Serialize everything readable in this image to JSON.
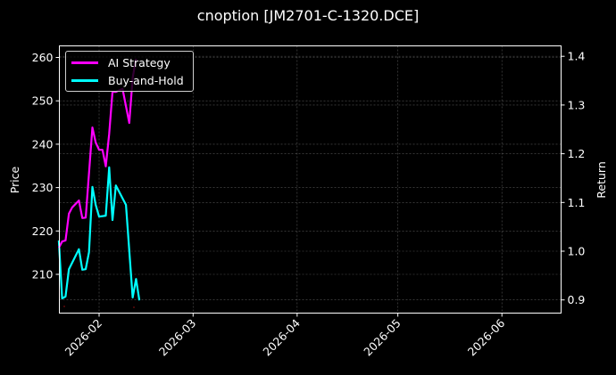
{
  "chart_data": {
    "type": "line",
    "title": "cnoption [JM2701-C-1320.DCE]",
    "xlabel": "",
    "ylabel": "Price",
    "ylabel_right": "Return",
    "x_ticks": [
      "2026-02",
      "2026-03",
      "2026-04",
      "2026-05",
      "2026-06"
    ],
    "x_range": [
      "2026-01-20",
      "2026-06-18"
    ],
    "ylim": [
      203,
      263
    ],
    "y_ticks": [
      210,
      220,
      230,
      240,
      250,
      260
    ],
    "ylim_right": [
      0.875,
      1.425
    ],
    "y_ticks_right": [
      0.9,
      1.0,
      1.1,
      1.2,
      1.3,
      1.4
    ],
    "grid": true,
    "legend_position": "upper left",
    "series": [
      {
        "name": "AI Strategy",
        "axis": "right",
        "color": "#ff00ff",
        "x": [
          "2026-01-20",
          "2026-01-21",
          "2026-01-22",
          "2026-01-23",
          "2026-01-24",
          "2026-01-26",
          "2026-01-27",
          "2026-01-28",
          "2026-01-30",
          "2026-01-31",
          "2026-02-01",
          "2026-02-02",
          "2026-02-03",
          "2026-02-04",
          "2026-02-05",
          "2026-02-06",
          "2026-02-08",
          "2026-02-10",
          "2026-02-11",
          "2026-02-12"
        ],
        "values": [
          1.007,
          1.02,
          1.022,
          1.077,
          1.09,
          1.104,
          1.068,
          1.069,
          1.254,
          1.223,
          1.208,
          1.208,
          1.174,
          1.241,
          1.327,
          1.327,
          1.333,
          1.263,
          1.356,
          1.395
        ]
      },
      {
        "name": "Buy-and-Hold",
        "axis": "right",
        "color": "#00ffff",
        "x": [
          "2026-01-20",
          "2026-01-21",
          "2026-01-22",
          "2026-01-23",
          "2026-01-26",
          "2026-01-27",
          "2026-01-28",
          "2026-01-29",
          "2026-01-30",
          "2026-01-31",
          "2026-02-01",
          "2026-02-03",
          "2026-02-04",
          "2026-02-05",
          "2026-02-06",
          "2026-02-09",
          "2026-02-11",
          "2026-02-12",
          "2026-02-13"
        ],
        "values": [
          1.022,
          0.903,
          0.907,
          0.963,
          1.004,
          0.962,
          0.963,
          0.998,
          1.132,
          1.095,
          1.071,
          1.073,
          1.172,
          1.064,
          1.135,
          1.095,
          0.905,
          0.943,
          0.899
        ]
      }
    ]
  },
  "header": {
    "title": "cnoption [JM2701-C-1320.DCE]"
  },
  "legend": {
    "items": [
      {
        "label": "AI Strategy",
        "color": "#ff00ff"
      },
      {
        "label": "Buy-and-Hold",
        "color": "#00ffff"
      }
    ]
  },
  "colors": {
    "background": "#000000",
    "grid": "#555555",
    "axis": "#ffffff"
  }
}
